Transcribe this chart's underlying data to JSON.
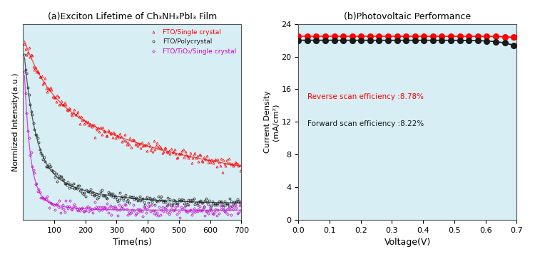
{
  "title_a": "(a)Exciton Lifetime of Ch₃NH₃PbI₃ Film",
  "title_b": "(b)Photovoltaic Performance",
  "xlabel_a": "Time(ns)",
  "ylabel_a": "Normlized Intensity(a.u.)",
  "xlabel_b": "Voltage(V)",
  "ylabel_b_line1": "Current Density",
  "ylabel_b_line2": "(mA/cm²)",
  "xlim_a": [
    0,
    700
  ],
  "xlim_b": [
    0.0,
    0.7
  ],
  "ylim_b": [
    0,
    24
  ],
  "xticks_a": [
    100,
    200,
    300,
    400,
    500,
    600,
    700
  ],
  "yticks_b": [
    0,
    4,
    8,
    12,
    16,
    20,
    24
  ],
  "xticks_b": [
    0.0,
    0.1,
    0.2,
    0.3,
    0.4,
    0.5,
    0.6,
    0.7
  ],
  "color_red": "#FF0000",
  "color_black": "#1a1a1a",
  "color_magenta": "#CC00CC",
  "bg_color": "#d6eef4",
  "annotation_reverse": "Reverse scan efficiency :8.78%",
  "annotation_forward": "Forward scan efficiency :8.22%",
  "legend_labels": [
    "FTO/Single crystal",
    "FTO/Polycrystal",
    "FTO/TiO₂/Single crystal"
  ],
  "tau_red_fast": 80,
  "tau_red_slow": 600,
  "tau_black_fast": 40,
  "tau_black_slow": 200,
  "tau_magenta_fast": 20,
  "tau_magenta_slow": 80
}
